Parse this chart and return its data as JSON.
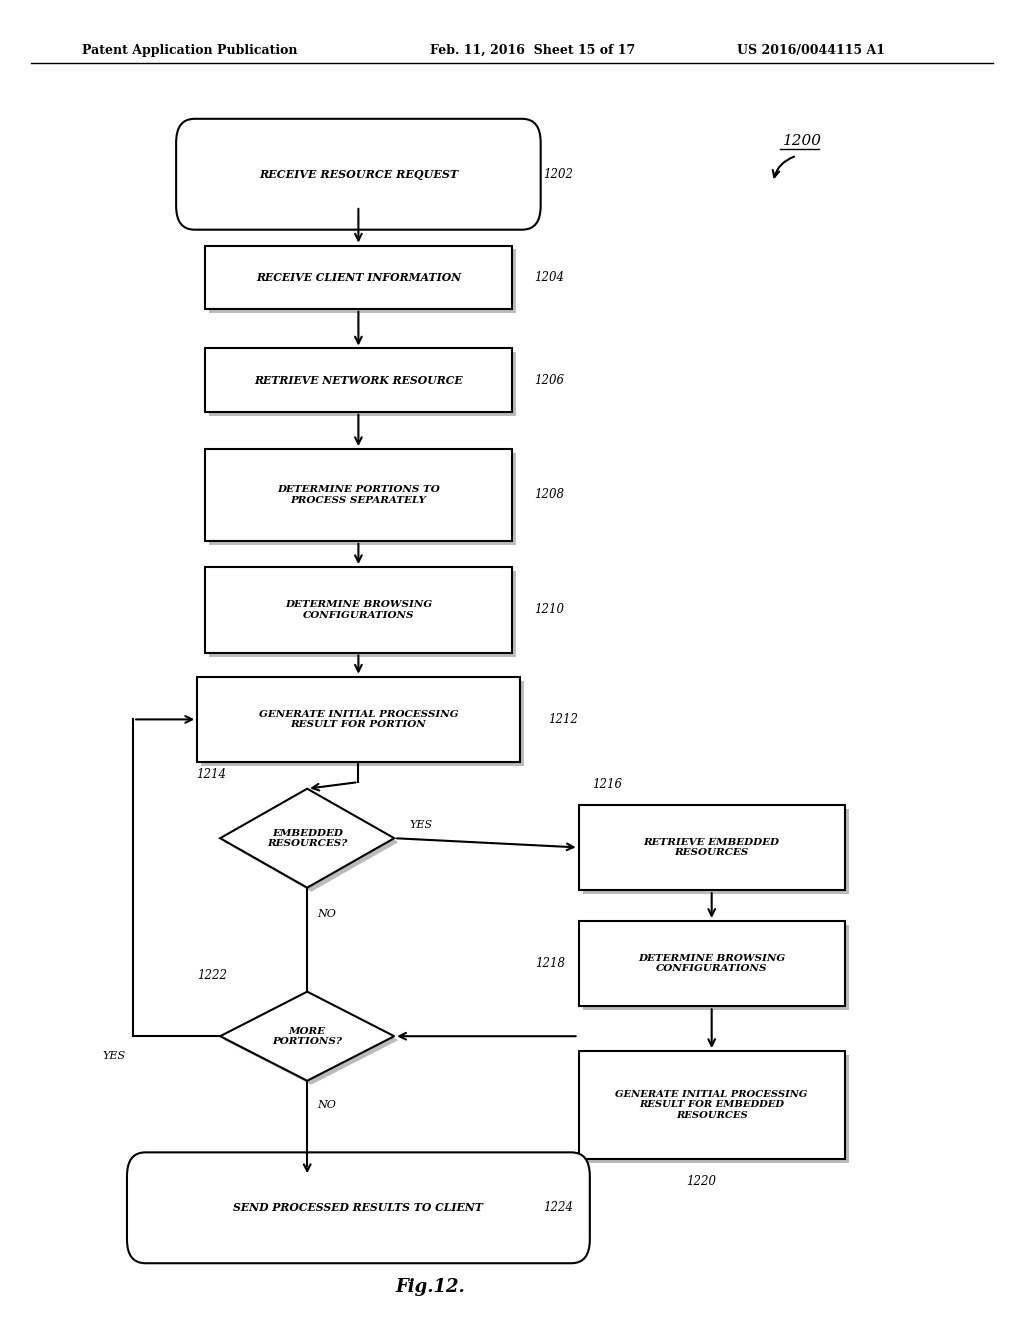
{
  "bg_color": "#ffffff",
  "header_left": "Patent Application Publication",
  "header_mid": "Feb. 11, 2016  Sheet 15 of 17",
  "header_right": "US 2016/0044115 A1",
  "fig_label": "Fig.12.",
  "diagram_ref": "1200"
}
